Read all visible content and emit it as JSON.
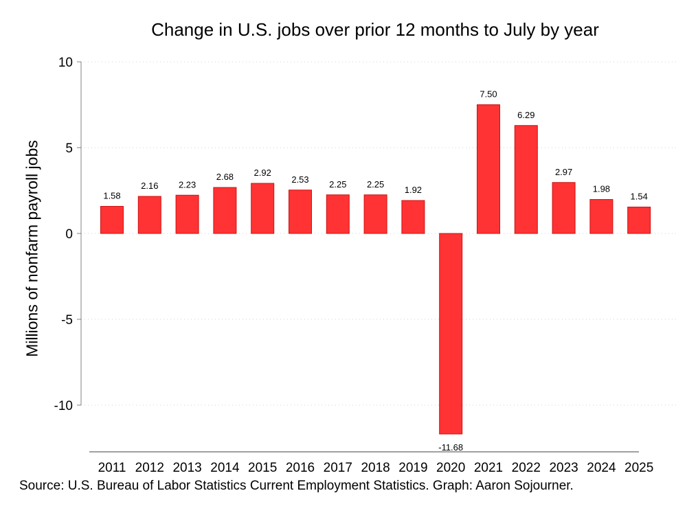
{
  "chart_data": {
    "type": "bar",
    "title": "Change in U.S. jobs over prior 12 months to July by year",
    "ylabel": "Millions of nonfarm payroll jobs",
    "xlabel": "",
    "categories": [
      "2011",
      "2012",
      "2013",
      "2014",
      "2015",
      "2016",
      "2017",
      "2018",
      "2019",
      "2020",
      "2021",
      "2022",
      "2023",
      "2024",
      "2025"
    ],
    "values": [
      1.58,
      2.16,
      2.23,
      2.68,
      2.92,
      2.53,
      2.25,
      2.25,
      1.92,
      -11.68,
      7.5,
      6.29,
      2.97,
      1.98,
      1.54
    ],
    "value_labels": [
      "1.58",
      "2.16",
      "2.23",
      "2.68",
      "2.92",
      "2.53",
      "2.25",
      "2.25",
      "1.92",
      "-11.68",
      "7.50",
      "6.29",
      "2.97",
      "1.98",
      "1.54"
    ],
    "ylim": [
      -12.5,
      10
    ],
    "yticks": [
      10,
      5,
      0,
      -5,
      -10
    ],
    "ytick_labels": [
      "10",
      "5",
      "0",
      "-5",
      "-10"
    ],
    "grid": true,
    "bar_color": "#ff3333",
    "bar_edge_color": "#cc1111",
    "grid_color": "#d0d0d0",
    "axis_color": "#808080"
  },
  "source": "Source: U.S. Bureau of Labor Statistics Current Employment Statistics. Graph: Aaron Sojourner."
}
